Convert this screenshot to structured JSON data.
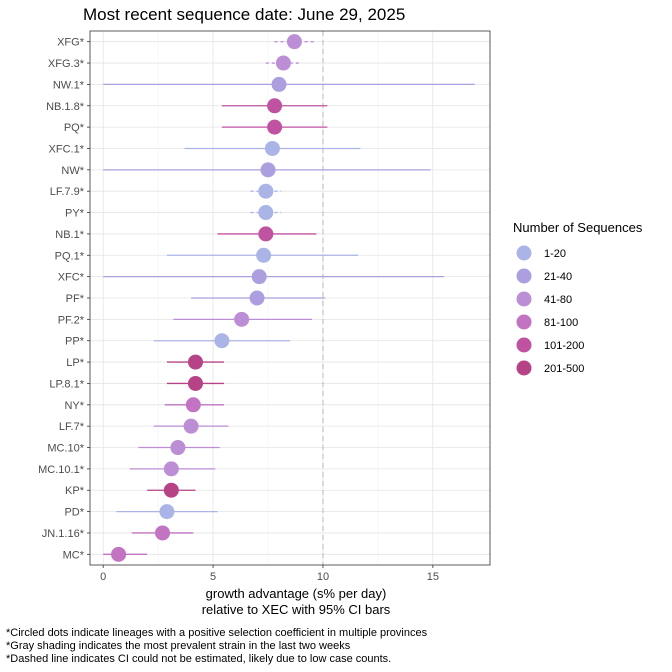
{
  "chart_data": {
    "type": "scatter",
    "title": "Most recent sequence date: June 29, 2025",
    "xlabel_line1": "growth advantage (s% per day)",
    "xlabel_line2": "relative to  XEC  with 95% CI bars",
    "xlim": [
      -0.6,
      17.6
    ],
    "xticks": [
      0,
      5,
      10,
      15
    ],
    "reference_line_x": 10,
    "grid": true,
    "legend": {
      "title": "Number of Sequences",
      "placement": "right",
      "items": [
        {
          "label": "1-20",
          "color": "#aab4e6"
        },
        {
          "label": "21-40",
          "color": "#ad9fdf"
        },
        {
          "label": "41-80",
          "color": "#bb8ed6"
        },
        {
          "label": "81-100",
          "color": "#c274c2"
        },
        {
          "label": "101-200",
          "color": "#c052a2"
        },
        {
          "label": "201-500",
          "color": "#b54386"
        }
      ]
    },
    "points": [
      {
        "lineage": "XFG*",
        "value": 8.7,
        "ci_low": 7.8,
        "ci_high": 9.6,
        "group": "41-80",
        "ci_dashed": true
      },
      {
        "lineage": "XFG.3*",
        "value": 8.2,
        "ci_low": 7.4,
        "ci_high": 9.0,
        "group": "41-80",
        "ci_dashed": true
      },
      {
        "lineage": "NW.1*",
        "value": 8.0,
        "ci_low": 0.0,
        "ci_high": 16.9,
        "group": "21-40",
        "ci_dashed": false
      },
      {
        "lineage": "NB.1.8*",
        "value": 7.8,
        "ci_low": 5.4,
        "ci_high": 10.2,
        "group": "101-200",
        "ci_dashed": false
      },
      {
        "lineage": "PQ*",
        "value": 7.8,
        "ci_low": 5.4,
        "ci_high": 10.2,
        "group": "101-200",
        "ci_dashed": false
      },
      {
        "lineage": "XFC.1*",
        "value": 7.7,
        "ci_low": 3.7,
        "ci_high": 11.7,
        "group": "1-20",
        "ci_dashed": false
      },
      {
        "lineage": "NW*",
        "value": 7.5,
        "ci_low": 0.0,
        "ci_high": 14.9,
        "group": "21-40",
        "ci_dashed": false
      },
      {
        "lineage": "LF.7.9*",
        "value": 7.4,
        "ci_low": 6.7,
        "ci_high": 8.1,
        "group": "1-20",
        "ci_dashed": true
      },
      {
        "lineage": "PY*",
        "value": 7.4,
        "ci_low": 6.7,
        "ci_high": 8.1,
        "group": "1-20",
        "ci_dashed": true
      },
      {
        "lineage": "NB.1*",
        "value": 7.4,
        "ci_low": 5.2,
        "ci_high": 9.7,
        "group": "101-200",
        "ci_dashed": false
      },
      {
        "lineage": "PQ.1*",
        "value": 7.3,
        "ci_low": 2.9,
        "ci_high": 11.6,
        "group": "1-20",
        "ci_dashed": false
      },
      {
        "lineage": "XFC*",
        "value": 7.1,
        "ci_low": 0.0,
        "ci_high": 15.5,
        "group": "21-40",
        "ci_dashed": false
      },
      {
        "lineage": "PF*",
        "value": 7.0,
        "ci_low": 4.0,
        "ci_high": 10.1,
        "group": "21-40",
        "ci_dashed": false
      },
      {
        "lineage": "PF.2*",
        "value": 6.3,
        "ci_low": 3.2,
        "ci_high": 9.5,
        "group": "41-80",
        "ci_dashed": false
      },
      {
        "lineage": "PP*",
        "value": 5.4,
        "ci_low": 2.3,
        "ci_high": 8.5,
        "group": "1-20",
        "ci_dashed": false
      },
      {
        "lineage": "LP*",
        "value": 4.2,
        "ci_low": 2.9,
        "ci_high": 5.5,
        "group": "201-500",
        "ci_dashed": false
      },
      {
        "lineage": "LP.8.1*",
        "value": 4.2,
        "ci_low": 2.9,
        "ci_high": 5.5,
        "group": "201-500",
        "ci_dashed": false
      },
      {
        "lineage": "NY*",
        "value": 4.1,
        "ci_low": 2.8,
        "ci_high": 5.5,
        "group": "81-100",
        "ci_dashed": false
      },
      {
        "lineage": "LF.7*",
        "value": 4.0,
        "ci_low": 2.3,
        "ci_high": 5.7,
        "group": "41-80",
        "ci_dashed": false
      },
      {
        "lineage": "MC.10*",
        "value": 3.4,
        "ci_low": 1.6,
        "ci_high": 5.3,
        "group": "41-80",
        "ci_dashed": false
      },
      {
        "lineage": "MC.10.1*",
        "value": 3.1,
        "ci_low": 1.2,
        "ci_high": 5.1,
        "group": "41-80",
        "ci_dashed": false
      },
      {
        "lineage": "KP*",
        "value": 3.1,
        "ci_low": 2.0,
        "ci_high": 4.2,
        "group": "201-500",
        "ci_dashed": false
      },
      {
        "lineage": "PD*",
        "value": 2.9,
        "ci_low": 0.6,
        "ci_high": 5.2,
        "group": "1-20",
        "ci_dashed": false
      },
      {
        "lineage": "JN.1.16*",
        "value": 2.7,
        "ci_low": 1.3,
        "ci_high": 4.1,
        "group": "81-100",
        "ci_dashed": false
      },
      {
        "lineage": "MC*",
        "value": 0.7,
        "ci_low": 0.0,
        "ci_high": 2.0,
        "group": "81-100",
        "ci_dashed": false
      }
    ],
    "footnotes": [
      "*Circled dots indicate lineages with a positive selection coefficient in multiple provinces",
      "*Gray shading indicates the most prevalent strain in the last two weeks",
      "*Dashed line indicates CI could not be estimated, likely due to low case counts."
    ]
  }
}
